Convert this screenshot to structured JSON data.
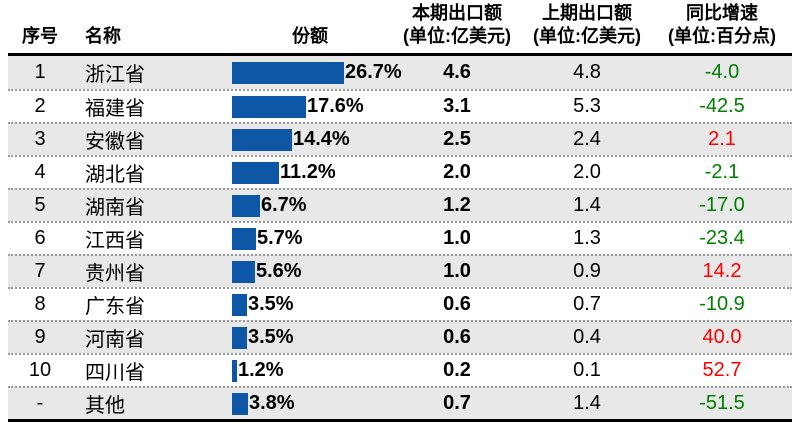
{
  "colors": {
    "bar_blue": "#0E57A6",
    "positive_red": "#FF0000",
    "negative_green": "#008000",
    "shaded_row_bg": "#E8E8E8",
    "header_rule": "#000000"
  },
  "header": {
    "no": "序号",
    "name": "名称",
    "share": "份额",
    "current_line1": "本期出口额",
    "current_line2": "(单位:亿美元)",
    "previous_line1": "上期出口额",
    "previous_line2": "(单位:亿美元)",
    "growth_line1": "同比增速",
    "growth_line2": "(单位:百分点)"
  },
  "chart_data": {
    "type": "table",
    "title": "",
    "columns": [
      "序号",
      "名称",
      "份额",
      "本期出口额(单位:亿美元)",
      "上期出口额(单位:亿美元)",
      "同比增速(单位:百分点)"
    ],
    "max_share_pct": 26.7,
    "rows": [
      {
        "no": "1",
        "name": "浙江省",
        "share_pct": 26.7,
        "share_label": "26.7%",
        "current": "4.6",
        "previous": "4.8",
        "growth": "-4.0"
      },
      {
        "no": "2",
        "name": "福建省",
        "share_pct": 17.6,
        "share_label": "17.6%",
        "current": "3.1",
        "previous": "5.3",
        "growth": "-42.5"
      },
      {
        "no": "3",
        "name": "安徽省",
        "share_pct": 14.4,
        "share_label": "14.4%",
        "current": "2.5",
        "previous": "2.4",
        "growth": "2.1"
      },
      {
        "no": "4",
        "name": "湖北省",
        "share_pct": 11.2,
        "share_label": "11.2%",
        "current": "2.0",
        "previous": "2.0",
        "growth": "-2.1"
      },
      {
        "no": "5",
        "name": "湖南省",
        "share_pct": 6.7,
        "share_label": "6.7%",
        "current": "1.2",
        "previous": "1.4",
        "growth": "-17.0"
      },
      {
        "no": "6",
        "name": "江西省",
        "share_pct": 5.7,
        "share_label": "5.7%",
        "current": "1.0",
        "previous": "1.3",
        "growth": "-23.4"
      },
      {
        "no": "7",
        "name": "贵州省",
        "share_pct": 5.6,
        "share_label": "5.6%",
        "current": "1.0",
        "previous": "0.9",
        "growth": "14.2"
      },
      {
        "no": "8",
        "name": "广东省",
        "share_pct": 3.5,
        "share_label": "3.5%",
        "current": "0.6",
        "previous": "0.7",
        "growth": "-10.9"
      },
      {
        "no": "9",
        "name": "河南省",
        "share_pct": 3.5,
        "share_label": "3.5%",
        "current": "0.6",
        "previous": "0.4",
        "growth": "40.0"
      },
      {
        "no": "10",
        "name": "四川省",
        "share_pct": 1.2,
        "share_label": "1.2%",
        "current": "0.2",
        "previous": "0.1",
        "growth": "52.7"
      },
      {
        "no": "-",
        "name": "其他",
        "share_pct": 3.8,
        "share_label": "3.8%",
        "current": "0.7",
        "previous": "1.4",
        "growth": "-51.5"
      }
    ]
  }
}
